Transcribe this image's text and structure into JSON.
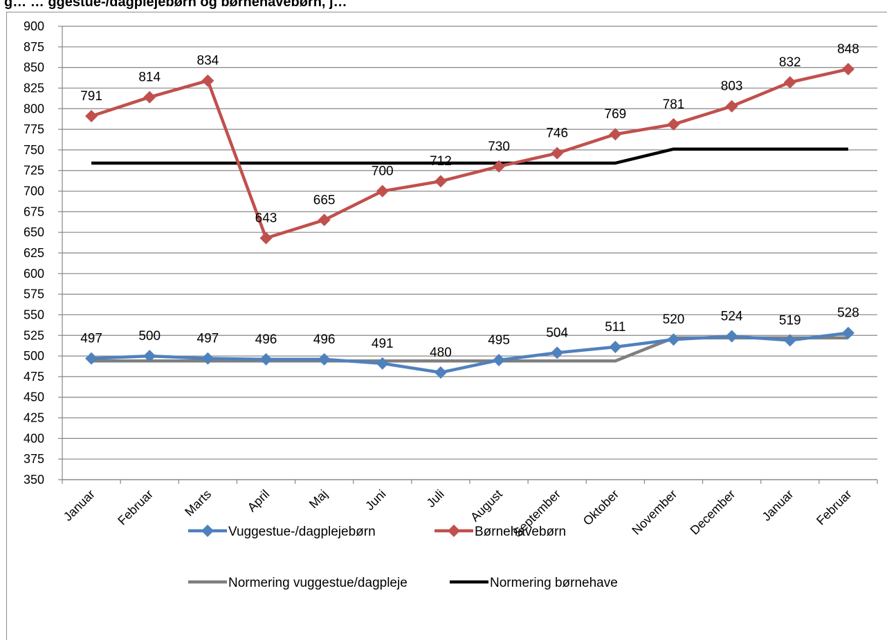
{
  "header": {
    "text": "g… … ggestue-/dagplejebørn og børnehavebørn, j…"
  },
  "chart_data": {
    "type": "line",
    "title": "",
    "xlabel": "",
    "ylabel": "",
    "ylim": [
      350,
      900
    ],
    "ytick_step": 25,
    "grid": true,
    "legend": "bottom",
    "categories": [
      "Januar",
      "Februar",
      "Marts",
      "April",
      "Maj",
      "Juni",
      "Juli",
      "August",
      "September",
      "Oktober",
      "November",
      "December",
      "Januar",
      "Februar"
    ],
    "series": [
      {
        "name": "Vuggestue-/dagplejebørn",
        "color": "#4f81bd",
        "marker": "diamond",
        "labels": true,
        "values": [
          497,
          500,
          497,
          496,
          496,
          491,
          480,
          495,
          504,
          511,
          520,
          524,
          519,
          528
        ]
      },
      {
        "name": "Børnehavebørn",
        "color": "#c0504d",
        "marker": "diamond",
        "labels": true,
        "values": [
          791,
          814,
          834,
          643,
          665,
          700,
          712,
          730,
          746,
          769,
          781,
          803,
          832,
          848
        ]
      },
      {
        "name": "Normering vuggestue/dagpleje",
        "color": "#7f7f7f",
        "marker": "none",
        "labels": false,
        "values": [
          494,
          494,
          494,
          494,
          494,
          494,
          494,
          494,
          494,
          494,
          522,
          522,
          522,
          522
        ]
      },
      {
        "name": "Normering børnehave",
        "color": "#000000",
        "marker": "none",
        "labels": false,
        "values": [
          734,
          734,
          734,
          734,
          734,
          734,
          734,
          734,
          734,
          734,
          751,
          751,
          751,
          751
        ]
      }
    ]
  }
}
